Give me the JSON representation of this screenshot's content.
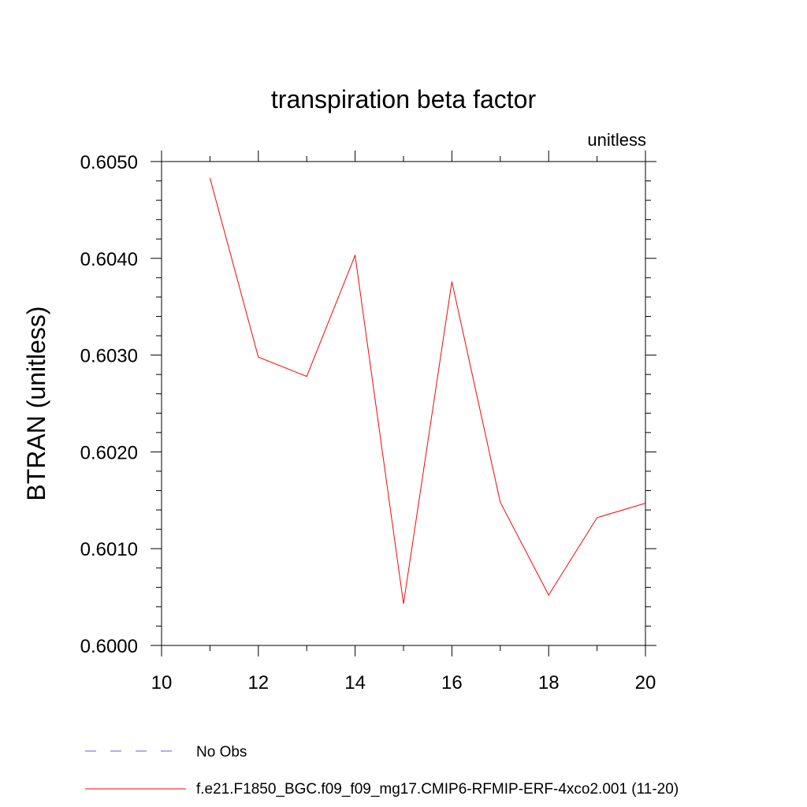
{
  "chart_data": {
    "type": "line",
    "title": "transpiration beta factor",
    "unit_label": "unitless",
    "xlabel": "",
    "ylabel": "BTRAN  (unitless)",
    "xlim": [
      10,
      20
    ],
    "ylim": [
      0.6,
      0.605
    ],
    "x_ticks": [
      10,
      12,
      14,
      16,
      18,
      20
    ],
    "x_tick_labels": [
      "10",
      "12",
      "14",
      "16",
      "18",
      "20"
    ],
    "y_ticks": [
      0.6,
      0.601,
      0.602,
      0.603,
      0.604,
      0.605
    ],
    "y_tick_labels": [
      "0.6000",
      "0.6010",
      "0.6020",
      "0.6030",
      "0.6040",
      "0.6050"
    ],
    "x_minor_step": 1,
    "y_minor_step": 0.0002,
    "grid": false,
    "legend_position": "bottom",
    "series": [
      {
        "name": "No Obs",
        "color": "#6a5acd",
        "dash": "dashed",
        "x": [],
        "y": []
      },
      {
        "name": "f.e21.F1850_BGC.f09_f09_mg17.CMIP6-RFMIP-ERF-4xco2.001 (11-20)",
        "color": "#ff0000",
        "dash": "solid",
        "x": [
          11,
          12,
          13,
          14,
          15,
          16,
          17,
          18,
          19,
          20
        ],
        "y": [
          0.60483,
          0.60298,
          0.60278,
          0.60403,
          0.60043,
          0.60376,
          0.60148,
          0.60052,
          0.60132,
          0.60147
        ]
      }
    ]
  }
}
